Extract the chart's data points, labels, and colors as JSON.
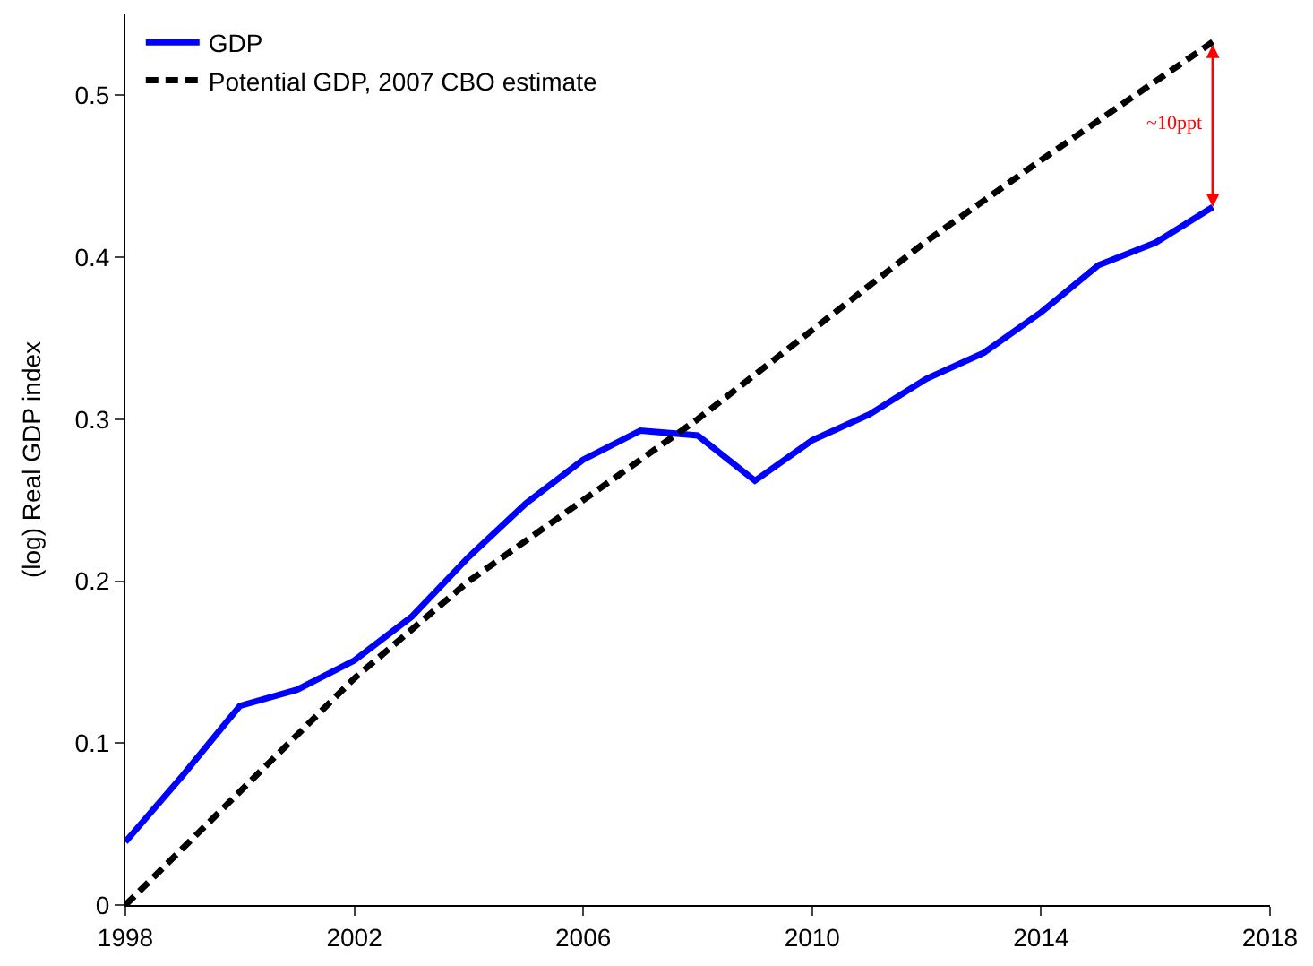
{
  "chart_data": {
    "type": "line",
    "ylabel": "(log) Real GDP index",
    "xlim": [
      1998,
      2018
    ],
    "ylim": [
      0,
      0.55
    ],
    "xticks": [
      1998,
      2002,
      2006,
      2010,
      2014,
      2018
    ],
    "yticks": [
      0,
      0.1,
      0.2,
      0.3,
      0.4,
      0.5
    ],
    "legend": "top left",
    "marker": "none",
    "series": [
      {
        "name": "GDP",
        "color": "#0000ff",
        "line_style": "solid",
        "x": [
          1998,
          1999,
          2000,
          2001,
          2002,
          2003,
          2004,
          2005,
          2006,
          2007,
          2008,
          2009,
          2010,
          2011,
          2012,
          2013,
          2014,
          2015,
          2016,
          2017
        ],
        "values": [
          0.039,
          0.08,
          0.123,
          0.133,
          0.151,
          0.178,
          0.215,
          0.248,
          0.275,
          0.293,
          0.29,
          0.262,
          0.287,
          0.303,
          0.325,
          0.341,
          0.366,
          0.395,
          0.409,
          0.431
        ]
      },
      {
        "name": "Potential GDP, 2007 CBO estimate",
        "color": "#000000",
        "line_style": "dashed",
        "x": [
          1998,
          2000,
          2002,
          2004,
          2006,
          2008,
          2010,
          2012,
          2014,
          2017
        ],
        "values": [
          0,
          0.07,
          0.14,
          0.2,
          0.25,
          0.3,
          0.355,
          0.41,
          0.46,
          0.533
        ]
      }
    ],
    "annotations": [
      "~10ppt"
    ]
  }
}
